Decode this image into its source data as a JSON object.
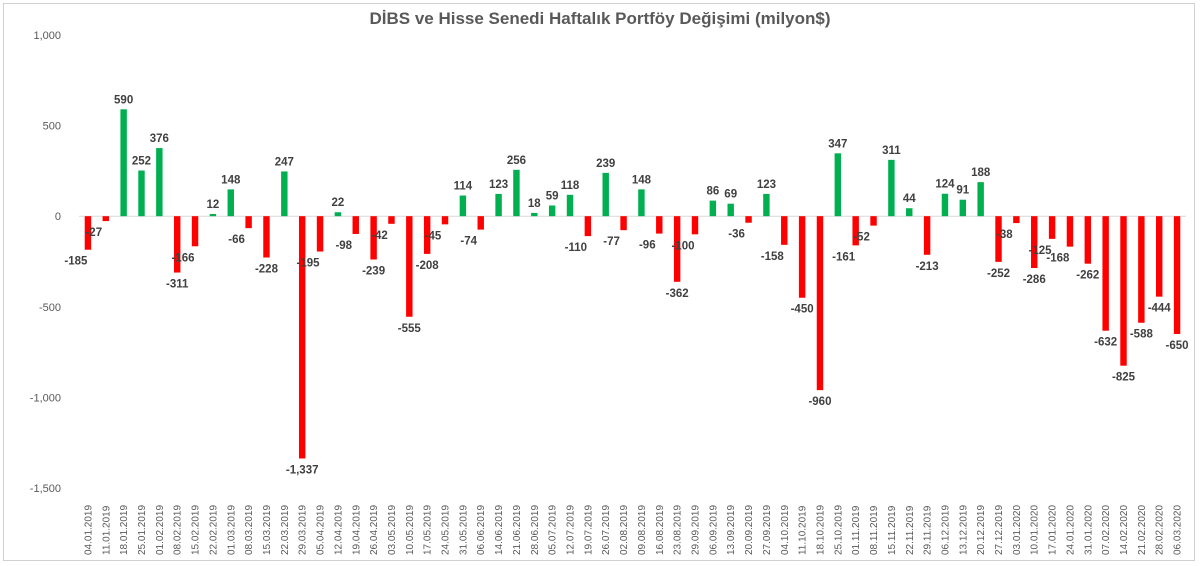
{
  "chart_data": {
    "type": "bar",
    "title": "DİBS ve Hisse Senedi Haftalık Portföy Değişimi (milyon$)",
    "xlabel": "",
    "ylabel": "",
    "ylim": [
      -1500,
      1000
    ],
    "yticks": [
      1000,
      500,
      0,
      -500,
      -1000,
      -1500
    ],
    "ytick_labels": [
      "1,000",
      "500",
      "0",
      "-500",
      "-1,000",
      "-1,500"
    ],
    "grid": false,
    "legend": "none",
    "colors": {
      "positive": "#00b050",
      "negative": "#ff0000",
      "axis": "#d9d9d9",
      "text": "#595959",
      "label": "#404040"
    },
    "categories": [
      "04.01.2019",
      "11.01.2019",
      "18.01.2019",
      "25.01.2019",
      "01.02.2019",
      "08.02.2019",
      "15.02.2019",
      "22.02.2019",
      "01.03.2019",
      "08.03.2019",
      "15.03.2019",
      "22.03.2019",
      "29.03.2019",
      "05.04.2019",
      "12.04.2019",
      "19.04.2019",
      "26.04.2019",
      "03.05.2019",
      "10.05.2019",
      "17.05.2019",
      "24.05.2019",
      "31.05.2019",
      "06.06.2019",
      "14.06.2019",
      "21.06.2019",
      "28.06.2019",
      "05.07.2019",
      "12.07.2019",
      "19.07.2019",
      "26.07.2019",
      "02.08.2019",
      "09.08.2019",
      "16.08.2019",
      "23.08.2019",
      "29.09.2019",
      "06.09.2019",
      "13.09.2019",
      "20.09.2019",
      "27.09.2019",
      "04.10.2019",
      "11.10.2019",
      "18.10.2019",
      "25.10.2019",
      "01.11.2019",
      "08.11.2019",
      "15.11.2019",
      "22.11.2019",
      "29.11.2019",
      "06.12.2019",
      "13.12.2019",
      "20.12.2019",
      "27.12.2019",
      "03.01.2020",
      "10.01.2020",
      "17.01.2020",
      "24.01.2020",
      "31.01.2020",
      "07.02.2020",
      "14.02.2020",
      "21.02.2020",
      "28.02.2020",
      "06.03.2020"
    ],
    "values": [
      -185,
      -27,
      590,
      252,
      376,
      -311,
      -166,
      12,
      148,
      -66,
      -228,
      247,
      -1337,
      -195,
      22,
      -98,
      -239,
      -42,
      -555,
      -208,
      -45,
      114,
      -74,
      123,
      256,
      18,
      59,
      118,
      -110,
      239,
      -77,
      148,
      -96,
      -362,
      -100,
      86,
      69,
      -36,
      123,
      -158,
      -450,
      -960,
      347,
      -161,
      -52,
      311,
      44,
      -213,
      124,
      91,
      188,
      -252,
      -38,
      -286,
      -125,
      -168,
      -262,
      -632,
      -825,
      -588,
      -444,
      -650
    ],
    "labels": [
      "-185",
      "-27",
      "590",
      "252",
      "376",
      "-311",
      "-166",
      "12",
      "148",
      "-66",
      "-228",
      "247",
      "-1,337",
      "-195",
      "22",
      "-98",
      "-239",
      "-42",
      "-555",
      "-208",
      "-45",
      "114",
      "-74",
      "123",
      "256",
      "18",
      "59",
      "118",
      "-110",
      "239",
      "-77",
      "148",
      "-96",
      "-362",
      "-100",
      "86",
      "69",
      "-36",
      "123",
      "-158",
      "-450",
      "-960",
      "347",
      "-161",
      "-52",
      "311",
      "44",
      "-213",
      "124",
      "91",
      "188",
      "-252",
      "-38",
      "-286",
      "-125",
      "-168",
      "-262",
      "-632",
      "-825",
      "-588",
      "-444",
      "-650"
    ]
  }
}
